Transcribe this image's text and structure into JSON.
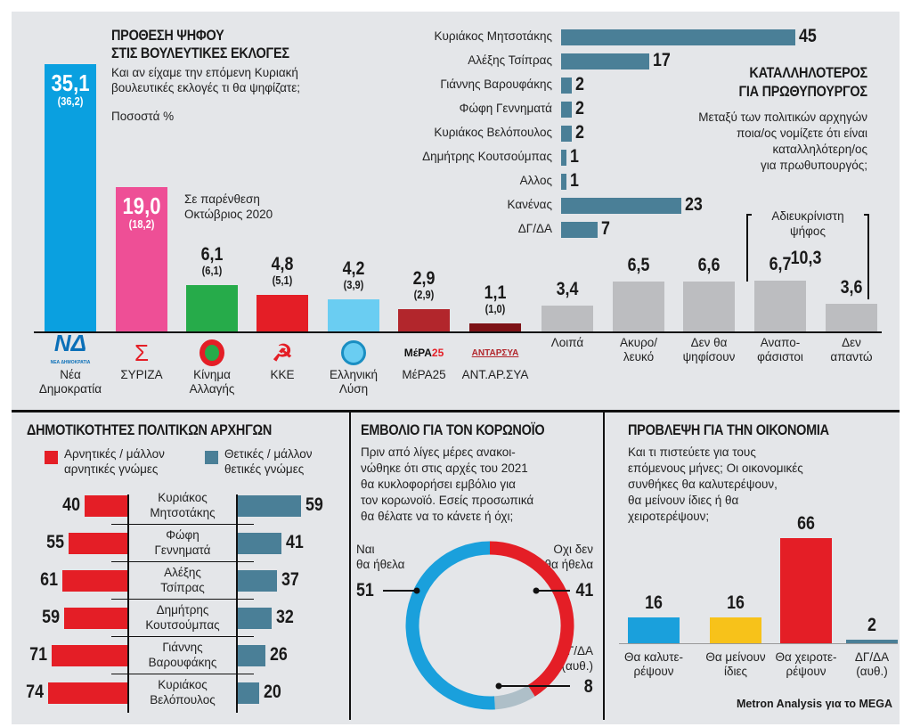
{
  "vote_intention": {
    "title1": "ΠΡΟΘΕΣΗ ΨΗΦΟΥ",
    "title2": "ΣΤΙΣ ΒΟΥΛΕΥΤΙΚΕΣ ΕΚΛΟΓΕΣ",
    "question1": "Και αν είχαμε την επόμενη Κυριακή",
    "question2": "βουλευτικές εκλογές τι θα ψηφίζατε;",
    "unit": "Ποσοστά %",
    "note1": "Σε παρένθεση",
    "note2": "Οκτώβριος 2020",
    "bracket_label1": "Αδιευκρίνιστη",
    "bracket_label2": "ψήφος",
    "bracket_total": "10,3"
  },
  "pm": {
    "title1": "ΚΑΤΑΛΛΗΛΟΤΕΡΟΣ",
    "title2": "ΓΙΑ ΠΡΩΘΥΠΟΥΡΓΟΣ",
    "q1": "Μεταξύ των πολιτικών αρχηγών",
    "q2": "ποια/ος νομίζετε ότι είναι",
    "q3": "καταλληλότερη/ος",
    "q4": "για πρωθυπουργός;"
  },
  "popularity": {
    "title": "ΔΗΜΟΤΙΚΟΤΗΤΕΣ ΠΟΛΙΤΙΚΩΝ ΑΡΧΗΓΩΝ",
    "legend_neg1": "Αρνητικές / μάλλον",
    "legend_neg2": "αρνητικές γνώμες",
    "legend_pos1": "Θετικές / μάλλον",
    "legend_pos2": "θετικές γνώμες"
  },
  "vaccine": {
    "title": "ΕΜΒΟΛΙΟ ΓΙΑ ΤΟΝ ΚΟΡΩΝΟΪΟ",
    "q": [
      "Πριν από λίγες μέρες ανακοι-",
      "νώθηκε ότι στις αρχές του 2021",
      "θα κυκλοφορήσει εμβόλιο για",
      "τον κορωνοϊό. Εσείς προσωπικά",
      "θα θέλατε να το κάνετε ή όχι;"
    ]
  },
  "economy": {
    "title": "ΠΡΟΒΛΕΨΗ ΓΙΑ ΤΗΝ ΟΙΚΟΝΟΜΙΑ",
    "q": [
      "Και τι πιστεύετε για τους",
      "επόμενους μήνες; Οι οικονομικές",
      "συνθήκες θα καλυτερέψουν,",
      "θα μείνουν ίδιες ή θα",
      "χειροτερέψουν;"
    ]
  },
  "source": "Metron Analysis για το MEGA",
  "chart_data": [
    {
      "type": "bar",
      "id": "vote",
      "title": "ΠΡΟΘΕΣΗ ΨΗΦΟΥ ΣΤΙΣ ΒΟΥΛΕΥΤΙΚΕΣ ΕΚΛΟΓΕΣ",
      "categories": [
        [
          "Νέα",
          "Δημοκρατία"
        ],
        [
          "ΣΥΡΙΖΑ"
        ],
        [
          "Κίνημα",
          "Αλλαγής"
        ],
        [
          "ΚΚΕ"
        ],
        [
          "Ελληνική",
          "Λύση"
        ],
        [
          "ΜέΡΑ25"
        ],
        [
          "ΑΝΤ.ΑΡ.ΣΥΑ"
        ],
        [
          "Λοιπά"
        ],
        [
          "Ακυρο/",
          "λευκό"
        ],
        [
          "Δεν θα",
          "ψηφίσουν"
        ],
        [
          "Αναπο-",
          "φάσιστοι"
        ],
        [
          "Δεν",
          "απαντώ"
        ]
      ],
      "values": [
        35.1,
        19.0,
        6.1,
        4.8,
        4.2,
        2.9,
        1.1,
        3.4,
        6.5,
        6.6,
        6.7,
        3.6
      ],
      "labels": [
        "35,1",
        "19,0",
        "6,1",
        "4,8",
        "4,2",
        "2,9",
        "1,1",
        "3,4",
        "6,5",
        "6,6",
        "6,7",
        "3,6"
      ],
      "previous": [
        "(36,2)",
        "(18,2)",
        "(6,1)",
        "(5,1)",
        "(3,9)",
        "(2,9)",
        "(1,0)",
        null,
        null,
        null,
        null,
        null
      ],
      "colors": [
        "#0aa0e0",
        "#ee4f96",
        "#26ab4a",
        "#e41e26",
        "#6acdf2",
        "#b2262c",
        "#7d1216",
        "#bcbdc0",
        "#bcbdc0",
        "#bcbdc0",
        "#bcbdc0",
        "#bcbdc0"
      ],
      "logos": [
        "nd-logo",
        "syriza-logo",
        "kinal-logo",
        "kke-logo",
        "elliniki-lysi-logo",
        "mera25-logo",
        "antarsya-logo",
        null,
        null,
        null,
        null,
        null
      ]
    },
    {
      "type": "bar",
      "id": "pm",
      "orientation": "horizontal",
      "title": "ΚΑΤΑΛΛΗΛΟΤΕΡΟΣ ΓΙΑ ΠΡΩΘΥΠΟΥΡΓΟΣ",
      "categories": [
        "Κυριάκος Μητσοτάκης",
        "Αλέξης Τσίπρας",
        "Γιάννης Βαρουφάκης",
        "Φώφη Γεννηματά",
        "Κυριάκος Βελόπουλος",
        "Δημήτρης Κουτσούμπας",
        "Αλλος",
        "Κανένας",
        "ΔΓ/ΔΑ"
      ],
      "values": [
        45,
        17,
        2,
        2,
        2,
        1,
        1,
        23,
        7
      ],
      "color": "#4a7f97"
    },
    {
      "type": "bar",
      "id": "popularity",
      "orientation": "horizontal-diverging",
      "title": "ΔΗΜΟΤΙΚΟΤΗΤΕΣ ΠΟΛΙΤΙΚΩΝ ΑΡΧΗΓΩΝ",
      "categories": [
        [
          "Κυριάκος",
          "Μητσοτάκης"
        ],
        [
          "Φώφη",
          "Γεννηματά"
        ],
        [
          "Αλέξης",
          "Τσίπρας"
        ],
        [
          "Δημήτρης",
          "Κουτσούμπας"
        ],
        [
          "Γιάννης",
          "Βαρουφάκης"
        ],
        [
          "Κυριάκος",
          "Βελόπουλος"
        ]
      ],
      "series": [
        {
          "name": "Αρνητικές / μάλλον αρνητικές γνώμες",
          "values": [
            40,
            55,
            61,
            59,
            71,
            74
          ],
          "color": "#e41e26"
        },
        {
          "name": "Θετικές / μάλλον θετικές γνώμες",
          "values": [
            59,
            41,
            37,
            32,
            26,
            20
          ],
          "color": "#4a7f97"
        }
      ]
    },
    {
      "type": "pie",
      "id": "vaccine",
      "donut": true,
      "title": "ΕΜΒΟΛΙΟ ΓΙΑ ΤΟΝ ΚΟΡΩΝΟΪΟ",
      "slices": [
        {
          "label": [
            "Οχι δεν",
            "θα ήθελα"
          ],
          "value": 41,
          "color": "#e41e26"
        },
        {
          "label": [
            "ΔΓ/ΔΑ",
            "(αυθ.)"
          ],
          "value": 8,
          "color": "#aebfc8"
        },
        {
          "label": [
            "Ναι",
            "θα ήθελα"
          ],
          "value": 51,
          "color": "#1aa0dc"
        }
      ]
    },
    {
      "type": "bar",
      "id": "economy",
      "title": "ΠΡΟΒΛΕΨΗ ΓΙΑ ΤΗΝ ΟΙΚΟΝΟΜΙΑ",
      "categories": [
        [
          "Θα καλυτε-",
          "ρέψουν"
        ],
        [
          "Θα μείνουν",
          "ίδιες"
        ],
        [
          "Θα χειροτε-",
          "ρέψουν"
        ],
        [
          "ΔΓ/ΔΑ",
          "(αυθ.)"
        ]
      ],
      "values": [
        16,
        16,
        66,
        2
      ],
      "colors": [
        "#1aa0dc",
        "#f7c21a",
        "#e41e26",
        "#4a7f97"
      ]
    }
  ]
}
